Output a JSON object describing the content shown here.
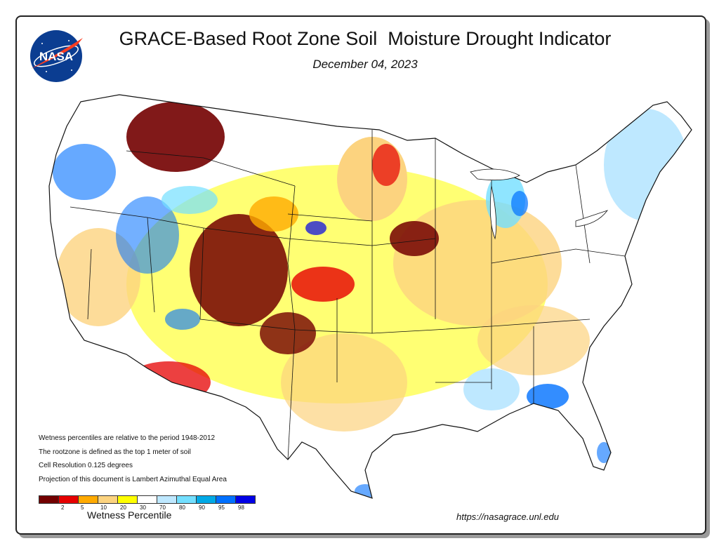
{
  "header": {
    "title": "GRACE-Based Root Zone Soil  Moisture Drought Indicator",
    "date": "December 04, 2023"
  },
  "logo": {
    "text": "NASA",
    "icon": "nasa-meatball-logo"
  },
  "notes": [
    "Wetness percentiles are relative to the period 1948-2012",
    "The rootzone is defined as the top 1 meter of soil",
    "Cell Resolution 0.125 degrees",
    "Projection of this document is Lambert Azimuthal Equal Area"
  ],
  "legend": {
    "title": "Wetness Percentile",
    "colors": [
      "#730000",
      "#e60000",
      "#ffaa00",
      "#fcd37f",
      "#ffff00",
      "#ffffff",
      "#bee8ff",
      "#73dfff",
      "#00a9e6",
      "#0070ff",
      "#0000e6"
    ],
    "tick_labels": [
      "2",
      "5",
      "10",
      "20",
      "30",
      "70",
      "80",
      "90",
      "95",
      "98"
    ]
  },
  "footer": {
    "url": "https://nasagrace.unl.edu"
  }
}
